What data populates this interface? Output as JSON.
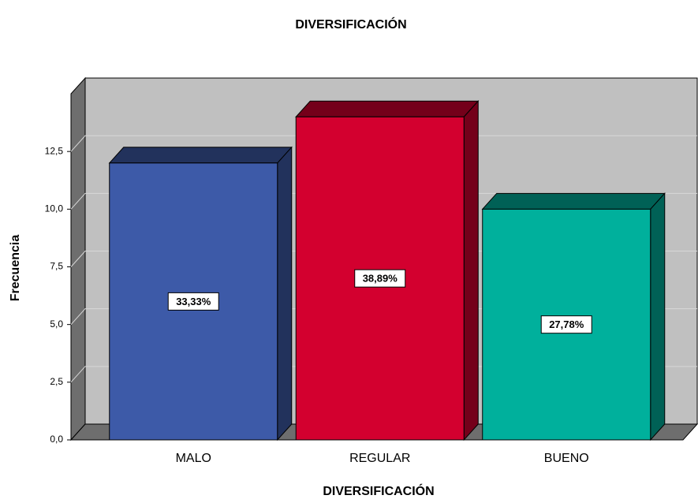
{
  "chart_data": {
    "type": "bar3d",
    "title": "DIVERSIFICACIÓN",
    "x_label": "DIVERSIFICACIÓN",
    "y_label": "Frecuencia",
    "categories": [
      "MALO",
      "REGULAR",
      "BUENO"
    ],
    "values": [
      12,
      14,
      10
    ],
    "colors": [
      "#3d5aa8",
      "#d3002f",
      "#00b09c"
    ],
    "percentages": [
      33.33,
      38.89,
      27.78
    ],
    "percentage_labels": [
      "33,33%",
      "38,89%",
      "27,78%"
    ],
    "ylim": [
      0,
      15
    ],
    "yticks": [
      {
        "value": 0,
        "label": "0,0"
      },
      {
        "value": 2.5,
        "label": "2,5"
      },
      {
        "value": 5,
        "label": "5,0"
      },
      {
        "value": 7.5,
        "label": "7,5"
      },
      {
        "value": 10,
        "label": "10,0"
      },
      {
        "value": 12.5,
        "label": "12,5"
      }
    ],
    "grid": true
  }
}
